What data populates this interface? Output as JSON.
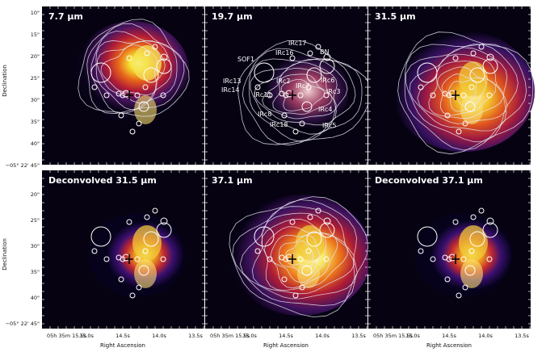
{
  "figure": {
    "panels": [
      {
        "title": "7.7 µm",
        "style": "p77"
      },
      {
        "title": "19.7 µm",
        "style": "p197"
      },
      {
        "title": "31.5 µm",
        "style": "p315"
      },
      {
        "title": "Deconvolved 31.5 µm",
        "style": "d315"
      },
      {
        "title": "37.1 µm",
        "style": "p371"
      },
      {
        "title": "Deconvolved 37.1 µm",
        "style": "d371"
      }
    ],
    "source_labels": [
      "IRc17",
      "IRc16",
      "BN",
      "SOF1",
      "IRc2",
      "IRc7",
      "IRc6",
      "IRc13",
      "IRc14",
      "IRc11",
      "IRc3",
      "IRc4",
      "IRc8",
      "IRc18",
      "IRc5"
    ],
    "y_axis": {
      "label": "Declination",
      "ticks_top_row": [
        "10\"",
        "15\"",
        "20\"",
        "25\"",
        "30\"",
        "35\"",
        "40\"",
        "−05° 22' 45\""
      ],
      "ticks_bottom_row": [
        "20\"",
        "25\"",
        "30\"",
        "35\"",
        "40\"",
        "−05° 22' 45\""
      ]
    },
    "x_axis": {
      "label": "Right Ascension",
      "ticks": [
        "05h 35m 15.5s",
        "15.0s",
        "14.5s",
        "14.0s",
        "13.5s"
      ]
    },
    "colors": {
      "background": "#060212",
      "contour": "#e6e6f0",
      "marker": "#ffffff"
    }
  }
}
